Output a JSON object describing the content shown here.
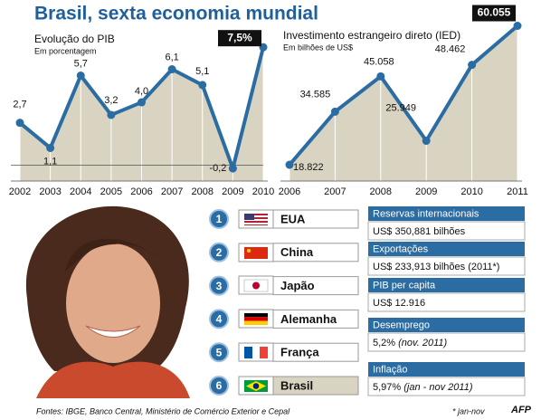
{
  "title": "Brasil, sexta economia mundial",
  "chart_data": [
    {
      "type": "line",
      "title": "Evolução do PIB",
      "subtitle": "Em porcentagem",
      "categories": [
        "2002",
        "2003",
        "2004",
        "2005",
        "2006",
        "2007",
        "2008",
        "2009",
        "2010"
      ],
      "values": [
        2.7,
        1.1,
        5.7,
        3.2,
        4.0,
        6.1,
        5.1,
        -0.2,
        7.5
      ],
      "value_labels": [
        "2,7",
        "1,1",
        "5,7",
        "3,2",
        "4,0",
        "6,1",
        "5,1",
        "-0,2",
        "7,5%"
      ],
      "color": "#2b6ca3",
      "area_color": "#d9d4c1",
      "ylim": [
        -1,
        8.2
      ]
    },
    {
      "type": "line",
      "title": "Investimento estrangeiro direto (IED)",
      "subtitle": "Em bilhões de US$",
      "categories": [
        "2006",
        "2007",
        "2008",
        "2009",
        "2010",
        "2011"
      ],
      "values": [
        18822,
        34585,
        45058,
        25949,
        48462,
        60055
      ],
      "value_labels": [
        "18.822",
        "34.585",
        "45.058",
        "25.949",
        "48.462",
        "60.055"
      ],
      "color": "#2b6ca3",
      "area_color": "#d9d4c1",
      "ylim": [
        14000,
        61000
      ]
    }
  ],
  "ranking": [
    {
      "rank": 1,
      "country": "EUA"
    },
    {
      "rank": 2,
      "country": "China"
    },
    {
      "rank": 3,
      "country": "Japão"
    },
    {
      "rank": 4,
      "country": "Alemanha"
    },
    {
      "rank": 5,
      "country": "França"
    },
    {
      "rank": 6,
      "country": "Brasil"
    }
  ],
  "indicators": [
    {
      "label": "Reservas internacionais",
      "value": "US$ 350,881 bilhões"
    },
    {
      "label": "Exportações",
      "value": "US$ 233,913 bilhões (2011*)"
    },
    {
      "label": "PIB per capita",
      "value": "US$ 12.916"
    },
    {
      "label": "Desemprego",
      "value": "5,2%",
      "note": "(nov. 2011)"
    },
    {
      "label": "Inflação",
      "value": "5,97%",
      "note": "(jan - nov 2011)"
    }
  ],
  "sources": "Fontes: IBGE, Banco Central, Ministério de Comércio Exterior e Cepal",
  "footnote": "* jan-nov",
  "credit": "AFP"
}
